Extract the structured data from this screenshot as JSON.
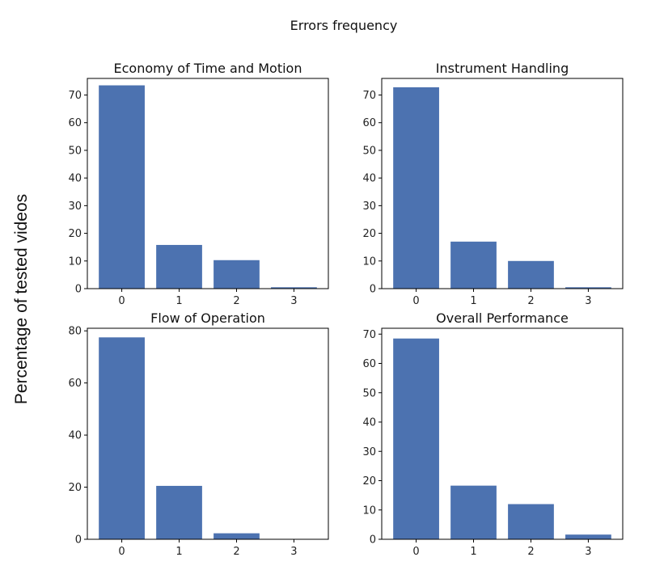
{
  "figure": {
    "suptitle": "Errors frequency",
    "ylabel": "Percentage of tested videos",
    "bar_color": "#4c72b0"
  },
  "chart_data": [
    {
      "type": "bar",
      "title": "Economy of Time and Motion",
      "categories": [
        "0",
        "1",
        "2",
        "3"
      ],
      "values": [
        73.5,
        15.8,
        10.3,
        0.5
      ],
      "xlabel": "",
      "ylabel": "",
      "ylim": [
        0,
        76
      ],
      "yticks": [
        0,
        10,
        20,
        30,
        40,
        50,
        60,
        70
      ],
      "grid": false
    },
    {
      "type": "bar",
      "title": "Instrument Handling",
      "categories": [
        "0",
        "1",
        "2",
        "3"
      ],
      "values": [
        72.8,
        17.0,
        10.0,
        0.5
      ],
      "xlabel": "",
      "ylabel": "",
      "ylim": [
        0,
        76
      ],
      "yticks": [
        0,
        10,
        20,
        30,
        40,
        50,
        60,
        70
      ],
      "grid": false
    },
    {
      "type": "bar",
      "title": "Flow of Operation",
      "categories": [
        "0",
        "1",
        "2",
        "3"
      ],
      "values": [
        77.5,
        20.5,
        2.3,
        0.0
      ],
      "xlabel": "",
      "ylabel": "",
      "ylim": [
        0,
        81
      ],
      "yticks": [
        0,
        20,
        40,
        60,
        80
      ],
      "grid": false
    },
    {
      "type": "bar",
      "title": "Overall Performance",
      "categories": [
        "0",
        "1",
        "2",
        "3"
      ],
      "values": [
        68.5,
        18.3,
        12.0,
        1.6
      ],
      "xlabel": "",
      "ylabel": "",
      "ylim": [
        0,
        72
      ],
      "yticks": [
        0,
        10,
        20,
        30,
        40,
        50,
        60,
        70
      ],
      "grid": false
    }
  ]
}
